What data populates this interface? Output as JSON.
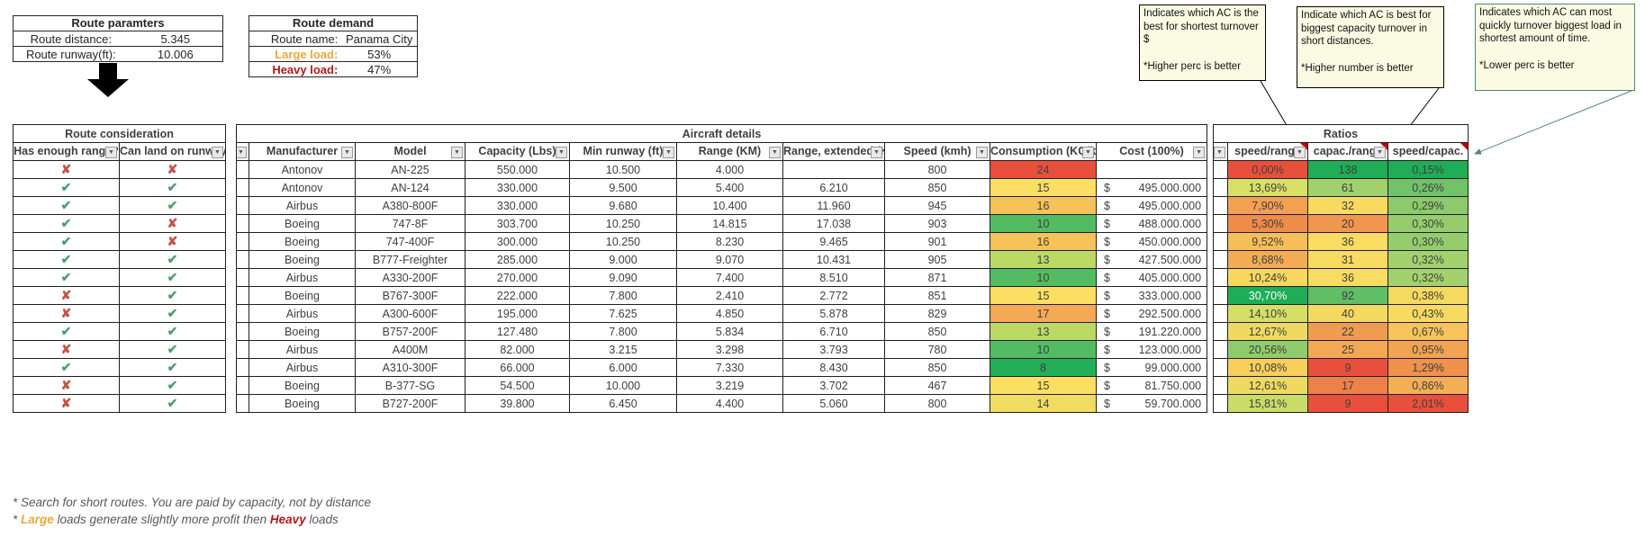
{
  "route_parameters": {
    "title": "Route paramters",
    "rows": [
      {
        "label": "Route distance:",
        "value": "5.345"
      },
      {
        "label": "Route runway(ft):",
        "value": "10.006"
      }
    ]
  },
  "route_demand": {
    "title": "Route demand",
    "rows": [
      {
        "label": "Route name:",
        "value": "Panama City",
        "style": "plain"
      },
      {
        "label": "Large load:",
        "value": "53%",
        "style": "orange"
      },
      {
        "label": "Heavy load:",
        "value": "47%",
        "style": "red"
      }
    ]
  },
  "notes": [
    {
      "text": "Indicates which AC is the best for shortest turnover $\n\n*Higher perc is better"
    },
    {
      "text": "Indicate which AC is best for biggest capacity turnover in short distances.\n\n*Higher number is better"
    },
    {
      "text": "Indicates which AC can most quickly turnover biggest load in shortest amount of time.\n\n*Lower perc is better"
    }
  ],
  "tables": {
    "route_consideration": {
      "title": "Route consideration",
      "columns": [
        {
          "label": "Has enough range?",
          "filter": true
        },
        {
          "label": "Can land on runway?",
          "filter": true
        }
      ]
    },
    "aircraft_details": {
      "title": "Aircraft details",
      "columns": [
        {
          "label": "",
          "filter": true
        },
        {
          "label": "Manufacturer",
          "filter": true
        },
        {
          "label": "Model",
          "filter": true
        },
        {
          "label": "Capacity (Lbs)",
          "filter": true
        },
        {
          "label": "Min runway (ft)",
          "filter": true
        },
        {
          "label": "Range (KM)",
          "filter": true
        },
        {
          "label": "Range, extended (KM)",
          "filter": true
        },
        {
          "label": "Speed (kmh)",
          "filter": true
        },
        {
          "label": "Consumption (KG/km)",
          "filter": true
        },
        {
          "label": "Cost (100%)",
          "filter": true
        }
      ]
    },
    "ratios": {
      "title": "Ratios",
      "columns": [
        {
          "label": "",
          "filter": true
        },
        {
          "label": "speed/range",
          "filter": true,
          "comment": true
        },
        {
          "label": "capac./range",
          "filter": true,
          "comment": true
        },
        {
          "label": "speed/capac.",
          "filter": false,
          "comment": true
        }
      ]
    }
  },
  "rows": [
    {
      "has_range": false,
      "can_land": false,
      "manufacturer": "Antonov",
      "model": "AN-225",
      "capacity": "550.000",
      "min_runway": "10.500",
      "range": "4.000",
      "range_ext": "",
      "speed": "800",
      "consumption": {
        "v": "24",
        "bg": "#E8503C"
      },
      "cost": "",
      "speed_range": {
        "v": "0,00%",
        "bg": "#E8503C"
      },
      "capac_range": {
        "v": "138",
        "bg": "#1FAD57"
      },
      "speed_capac": {
        "v": "0,15%",
        "bg": "#1FAD57"
      }
    },
    {
      "has_range": true,
      "can_land": true,
      "manufacturer": "Antonov",
      "model": "AN-124",
      "capacity": "330.000",
      "min_runway": "9.500",
      "range": "5.400",
      "range_ext": "6.210",
      "speed": "850",
      "consumption": {
        "v": "15",
        "bg": "#FADF63"
      },
      "cost": "495.000.000",
      "speed_range": {
        "v": "13,69%",
        "bg": "#D9E066"
      },
      "capac_range": {
        "v": "61",
        "bg": "#A0D16D"
      },
      "speed_capac": {
        "v": "0,26%",
        "bg": "#71C269"
      }
    },
    {
      "has_range": true,
      "can_land": true,
      "manufacturer": "Airbus",
      "model": "A380-800F",
      "capacity": "330.000",
      "min_runway": "9.680",
      "range": "10.400",
      "range_ext": "11.960",
      "speed": "945",
      "consumption": {
        "v": "16",
        "bg": "#F6C35A"
      },
      "cost": "495.000.000",
      "speed_range": {
        "v": "7,90%",
        "bg": "#F2A152"
      },
      "capac_range": {
        "v": "32",
        "bg": "#F7DB60"
      },
      "speed_capac": {
        "v": "0,29%",
        "bg": "#8CCA6B"
      }
    },
    {
      "has_range": true,
      "can_land": false,
      "manufacturer": "Boeing",
      "model": "747-8F",
      "capacity": "303.700",
      "min_runway": "10.250",
      "range": "14.815",
      "range_ext": "17.038",
      "speed": "903",
      "consumption": {
        "v": "10",
        "bg": "#53BC63"
      },
      "cost": "488.000.000",
      "speed_range": {
        "v": "5,30%",
        "bg": "#EE8C49"
      },
      "capac_range": {
        "v": "20",
        "bg": "#F0964E"
      },
      "speed_capac": {
        "v": "0,30%",
        "bg": "#95CD6C"
      }
    },
    {
      "has_range": true,
      "can_land": false,
      "manufacturer": "Boeing",
      "model": "747-400F",
      "capacity": "300.000",
      "min_runway": "10.250",
      "range": "8.230",
      "range_ext": "9.465",
      "speed": "901",
      "consumption": {
        "v": "16",
        "bg": "#F6C35A"
      },
      "cost": "450.000.000",
      "speed_range": {
        "v": "9,52%",
        "bg": "#F6BE59"
      },
      "capac_range": {
        "v": "36",
        "bg": "#F9DC61"
      },
      "speed_capac": {
        "v": "0,30%",
        "bg": "#95CD6C"
      }
    },
    {
      "has_range": true,
      "can_land": true,
      "manufacturer": "Boeing",
      "model": "B777-Freighter",
      "capacity": "285.000",
      "min_runway": "9.000",
      "range": "9.070",
      "range_ext": "10.431",
      "speed": "905",
      "consumption": {
        "v": "13",
        "bg": "#BCD966"
      },
      "cost": "427.500.000",
      "speed_range": {
        "v": "8,68%",
        "bg": "#F3AC54"
      },
      "capac_range": {
        "v": "31",
        "bg": "#F8DB60"
      },
      "speed_capac": {
        "v": "0,32%",
        "bg": "#A3D16E"
      }
    },
    {
      "has_range": true,
      "can_land": true,
      "manufacturer": "Airbus",
      "model": "A330-200F",
      "capacity": "270.000",
      "min_runway": "9.090",
      "range": "7.400",
      "range_ext": "8.510",
      "speed": "871",
      "consumption": {
        "v": "10",
        "bg": "#53BC63"
      },
      "cost": "405.000.000",
      "speed_range": {
        "v": "10,24%",
        "bg": "#F9D75F"
      },
      "capac_range": {
        "v": "36",
        "bg": "#F9DC61"
      },
      "speed_capac": {
        "v": "0,32%",
        "bg": "#A3D16E"
      }
    },
    {
      "has_range": false,
      "can_land": true,
      "manufacturer": "Boeing",
      "model": "B767-300F",
      "capacity": "222.000",
      "min_runway": "7.800",
      "range": "2.410",
      "range_ext": "2.772",
      "speed": "851",
      "consumption": {
        "v": "15",
        "bg": "#FADF63"
      },
      "cost": "333.000.000",
      "speed_range": {
        "v": "30,70%",
        "bg": "#1FAD57",
        "fg": "#FFFFFF"
      },
      "capac_range": {
        "v": "92",
        "bg": "#60BE66"
      },
      "speed_capac": {
        "v": "0,38%",
        "bg": "#F5DA60"
      }
    },
    {
      "has_range": false,
      "can_land": true,
      "manufacturer": "Airbus",
      "model": "A300-600F",
      "capacity": "195.000",
      "min_runway": "7.625",
      "range": "4.850",
      "range_ext": "5.878",
      "speed": "829",
      "consumption": {
        "v": "17",
        "bg": "#F4A955"
      },
      "cost": "292.500.000",
      "speed_range": {
        "v": "14,10%",
        "bg": "#D6DF65"
      },
      "capac_range": {
        "v": "40",
        "bg": "#F2D95F"
      },
      "speed_capac": {
        "v": "0,43%",
        "bg": "#F7DB60"
      }
    },
    {
      "has_range": true,
      "can_land": true,
      "manufacturer": "Boeing",
      "model": "B757-200F",
      "capacity": "127.480",
      "min_runway": "7.800",
      "range": "5.834",
      "range_ext": "6.710",
      "speed": "850",
      "consumption": {
        "v": "13",
        "bg": "#BCD966"
      },
      "cost": "191.220.000",
      "speed_range": {
        "v": "12,67%",
        "bg": "#EEDA60"
      },
      "capac_range": {
        "v": "22",
        "bg": "#F09C50"
      },
      "speed_capac": {
        "v": "0,67%",
        "bg": "#F6C45A"
      }
    },
    {
      "has_range": false,
      "can_land": true,
      "manufacturer": "Airbus",
      "model": "A400M",
      "capacity": "82.000",
      "min_runway": "3.215",
      "range": "3.298",
      "range_ext": "3.793",
      "speed": "780",
      "consumption": {
        "v": "10",
        "bg": "#53BC63"
      },
      "cost": "123.000.000",
      "speed_range": {
        "v": "20,56%",
        "bg": "#90CC6C"
      },
      "capac_range": {
        "v": "25",
        "bg": "#F2A854"
      },
      "speed_capac": {
        "v": "0,95%",
        "bg": "#F2A452"
      }
    },
    {
      "has_range": true,
      "can_land": true,
      "manufacturer": "Airbus",
      "model": "A310-300F",
      "capacity": "66.000",
      "min_runway": "6.000",
      "range": "7.330",
      "range_ext": "8.430",
      "speed": "850",
      "consumption": {
        "v": "8",
        "bg": "#23AE58"
      },
      "cost": "99.000.000",
      "speed_range": {
        "v": "10,08%",
        "bg": "#F8CE5D"
      },
      "capac_range": {
        "v": "9",
        "bg": "#E8503C"
      },
      "speed_capac": {
        "v": "1,29%",
        "bg": "#F0914C"
      }
    },
    {
      "has_range": false,
      "can_land": true,
      "manufacturer": "Boeing",
      "model": "B-377-SG",
      "capacity": "54.500",
      "min_runway": "10.000",
      "range": "3.219",
      "range_ext": "3.702",
      "speed": "467",
      "consumption": {
        "v": "15",
        "bg": "#FADF63"
      },
      "cost": "81.750.000",
      "speed_range": {
        "v": "12,61%",
        "bg": "#EEDA60"
      },
      "capac_range": {
        "v": "17",
        "bg": "#ED8147"
      },
      "speed_capac": {
        "v": "0,86%",
        "bg": "#F4AF55"
      }
    },
    {
      "has_range": false,
      "can_land": true,
      "manufacturer": "Boeing",
      "model": "B727-200F",
      "capacity": "39.800",
      "min_runway": "6.450",
      "range": "4.400",
      "range_ext": "5.060",
      "speed": "800",
      "consumption": {
        "v": "14",
        "bg": "#EFDC61"
      },
      "cost": "59.700.000",
      "speed_range": {
        "v": "15,81%",
        "bg": "#C9DC67"
      },
      "capac_range": {
        "v": "9",
        "bg": "#E8503C"
      },
      "speed_capac": {
        "v": "2,01%",
        "bg": "#E8503C"
      }
    }
  ],
  "footnotes": {
    "line1": "* Search for short routes. You are paid by capacity, not by distance",
    "line2": {
      "prefix": "* ",
      "large": "Large",
      "mid": " loads generate slightly more profit then ",
      "heavy": "Heavy",
      "suffix": " loads"
    }
  },
  "icons": {
    "filter_glyph": "▼",
    "check_glyph": "✔",
    "cross_glyph": "✘"
  },
  "currency_symbol": "$",
  "colors": {
    "check_green": "#4F9E6E",
    "cross_red": "#C0564A",
    "large_load": "#EDA63F",
    "heavy_load": "#B31919",
    "comment_triangle": "#C00000",
    "note_teal_border": "#4E8878"
  }
}
